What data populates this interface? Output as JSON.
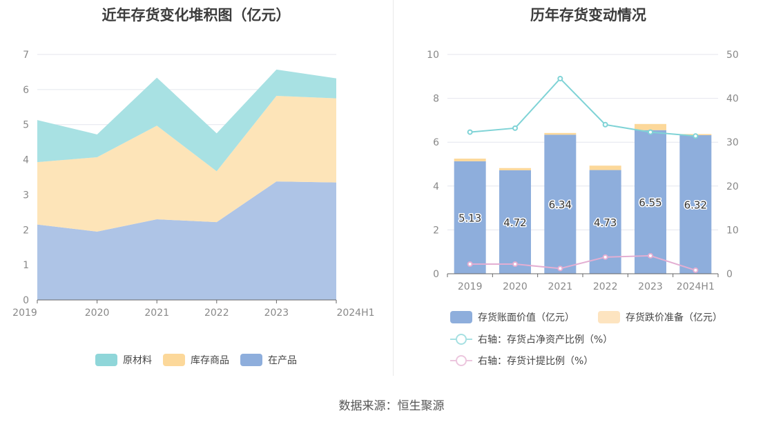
{
  "left_chart": {
    "title": "近年存货变化堆积图（亿元）",
    "chart_data": {
      "type": "area",
      "stacked": true,
      "categories": [
        "2019",
        "2020",
        "2021",
        "2022",
        "2023",
        "2024H1"
      ],
      "ylim": [
        0,
        7
      ],
      "yticks": [
        0,
        1,
        2,
        3,
        4,
        5,
        6,
        7
      ],
      "grid": true,
      "legend_position": "bottom",
      "series": [
        {
          "name": "在产品",
          "color": "#aec4e6",
          "legend_color": "#8eaedc",
          "values": [
            2.15,
            1.95,
            2.3,
            2.22,
            3.38,
            3.35
          ]
        },
        {
          "name": "库存商品",
          "color": "#fde4b8",
          "legend_color": "#fcd89a",
          "values": [
            1.78,
            2.12,
            2.67,
            1.45,
            2.44,
            2.4
          ]
        },
        {
          "name": "原材料",
          "color": "#a8e1e3",
          "legend_color": "#8fd6d9",
          "values": [
            1.2,
            0.65,
            1.37,
            1.08,
            0.75,
            0.57
          ]
        }
      ],
      "legend_order": [
        "原材料",
        "库存商品",
        "在产品"
      ]
    }
  },
  "right_chart": {
    "title": "历年存货变动情况",
    "chart_data": {
      "type": "bar",
      "stacked": true,
      "categories": [
        "2019",
        "2020",
        "2021",
        "2022",
        "2023",
        "2024H1"
      ],
      "ylim": [
        0,
        10
      ],
      "yticks": [
        0,
        2,
        4,
        6,
        8,
        10
      ],
      "y2lim": [
        0,
        50
      ],
      "y2ticks": [
        0,
        10,
        20,
        30,
        40,
        50
      ],
      "grid": true,
      "legend_position": "bottom",
      "series": [
        {
          "name": "存货账面价值（亿元）",
          "color": "#8eaedc",
          "values": [
            5.13,
            4.72,
            6.34,
            4.73,
            6.55,
            6.32
          ],
          "labels": [
            "5.13",
            "4.72",
            "6.34",
            "4.73",
            "6.55",
            "6.32"
          ]
        },
        {
          "name": "存货跌价准备（亿元）",
          "color": "#fcd89a",
          "legend_color": "#fde4c0",
          "values": [
            0.12,
            0.1,
            0.08,
            0.2,
            0.28,
            0.05
          ]
        }
      ],
      "lines": [
        {
          "name": "右轴：存货占净资产比例（%）",
          "color": "#7fd3d6",
          "legend_color": "#a6e0e2",
          "axis": "right",
          "values": [
            32.3,
            33.2,
            44.5,
            34.0,
            32.3,
            31.4
          ]
        },
        {
          "name": "右轴：存货计提比例（%）",
          "color": "#e3aed2",
          "legend_color": "#ecc6de",
          "axis": "right",
          "values": [
            2.2,
            2.2,
            1.2,
            3.8,
            4.1,
            0.8
          ]
        }
      ]
    }
  },
  "footer": {
    "source": "数据来源：恒生聚源"
  }
}
